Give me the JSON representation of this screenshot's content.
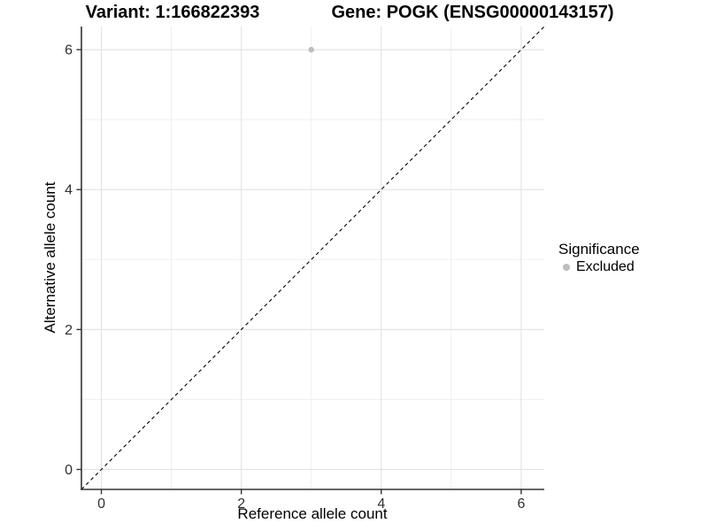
{
  "header": {
    "variant_title": "Variant: 1:166822393",
    "gene_title": "Gene: POGK (ENSG00000143157)"
  },
  "legend": {
    "title": "Significance",
    "items": [
      {
        "label": "Excluded",
        "color": "#bdbdbd"
      }
    ]
  },
  "chart_data": {
    "type": "scatter",
    "title": "Variant: 1:166822393 / Gene: POGK (ENSG00000143157)",
    "xlabel": "Reference allele count",
    "ylabel": "Alternative allele count",
    "xlim": [
      -0.285,
      6.33
    ],
    "ylim": [
      -0.285,
      6.33
    ],
    "x_ticks": [
      0,
      2,
      4,
      6
    ],
    "y_ticks": [
      0,
      2,
      4,
      6
    ],
    "minor_breaks": [
      1,
      3,
      5
    ],
    "grid": true,
    "legend_position": "right",
    "series": [
      {
        "name": "Excluded",
        "color": "#bdbdbd",
        "points": [
          {
            "x": 3,
            "y": 6
          }
        ]
      }
    ],
    "reference_line": {
      "slope": 1,
      "intercept": 0,
      "style": "dashed",
      "color": "#000000"
    },
    "colors": {
      "grid_major": "#e4e4e4",
      "grid_minor": "#efefef",
      "axis_line": "#333333",
      "tick_label": "#303030"
    }
  }
}
